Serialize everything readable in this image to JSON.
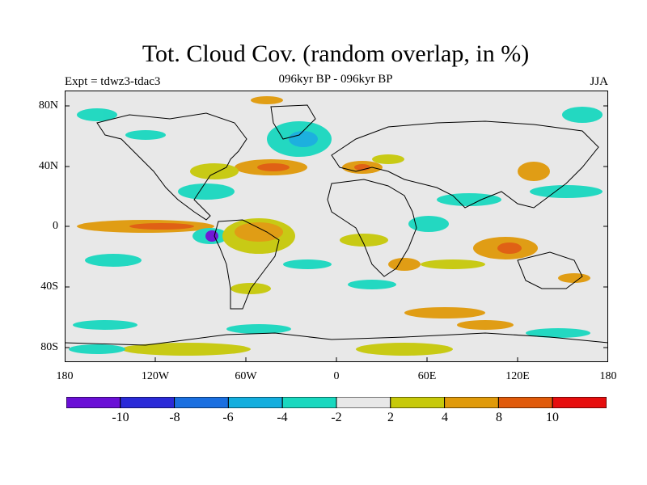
{
  "header": {
    "title": "Tot. Cloud Cov. (random overlap, in %)",
    "subtitle": "096kyr BP - 096kyr BP",
    "experiment": "Expt = tdwz3-tdac3",
    "season": "JJA"
  },
  "axes": {
    "y_labels": [
      "80N",
      "40N",
      "0",
      "40S",
      "80S"
    ],
    "x_labels": [
      "180",
      "120W",
      "60W",
      "0",
      "60E",
      "120E",
      "180"
    ]
  },
  "colorbar": {
    "labels": [
      "-10",
      "-8",
      "-6",
      "-4",
      "-2",
      "2",
      "4",
      "8",
      "10"
    ],
    "colors": [
      "#6a0fd6",
      "#2a2ad8",
      "#1a6fe0",
      "#13aede",
      "#19d8bf",
      "#e8e8e8",
      "#c7c90a",
      "#e09a0a",
      "#e05a0a",
      "#e60e0e"
    ]
  },
  "map": {
    "background": "#e8e8e8",
    "coastline_color": "#000000"
  }
}
